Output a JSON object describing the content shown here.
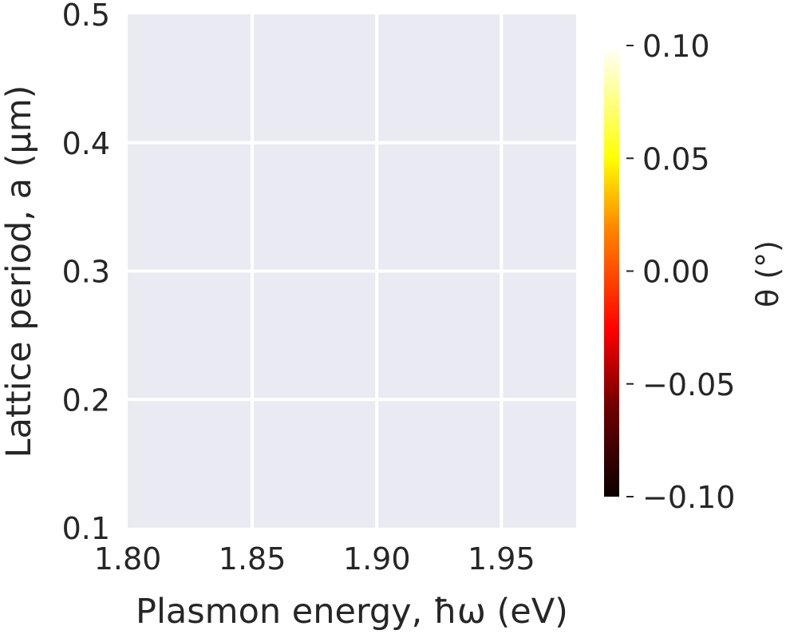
{
  "chart_data": {
    "type": "heatmap",
    "xlabel": "Plasmon energy, ħω (eV)",
    "ylabel": "Lattice period, a (μm)",
    "xlim": [
      1.8,
      1.98
    ],
    "ylim": [
      0.1,
      0.5
    ],
    "xticks": [
      1.8,
      1.85,
      1.9,
      1.95
    ],
    "xtick_labels": [
      "1.80",
      "1.85",
      "1.90",
      "1.95"
    ],
    "yticks": [
      0.1,
      0.2,
      0.3,
      0.4,
      0.5
    ],
    "ytick_labels": [
      "0.1",
      "0.2",
      "0.3",
      "0.4",
      "0.5"
    ],
    "grid": true,
    "values": [],
    "colorbar": {
      "label": "θ (°)",
      "colormap": "hot",
      "range": [
        -0.1,
        0.1
      ],
      "ticks": [
        -0.1,
        -0.05,
        0.0,
        0.05,
        0.1
      ],
      "tick_labels": [
        "−0.10",
        "−0.05",
        "0.00",
        "0.05",
        "0.10"
      ]
    },
    "background_color": "#eaeaf2",
    "grid_color": "#ffffff"
  }
}
